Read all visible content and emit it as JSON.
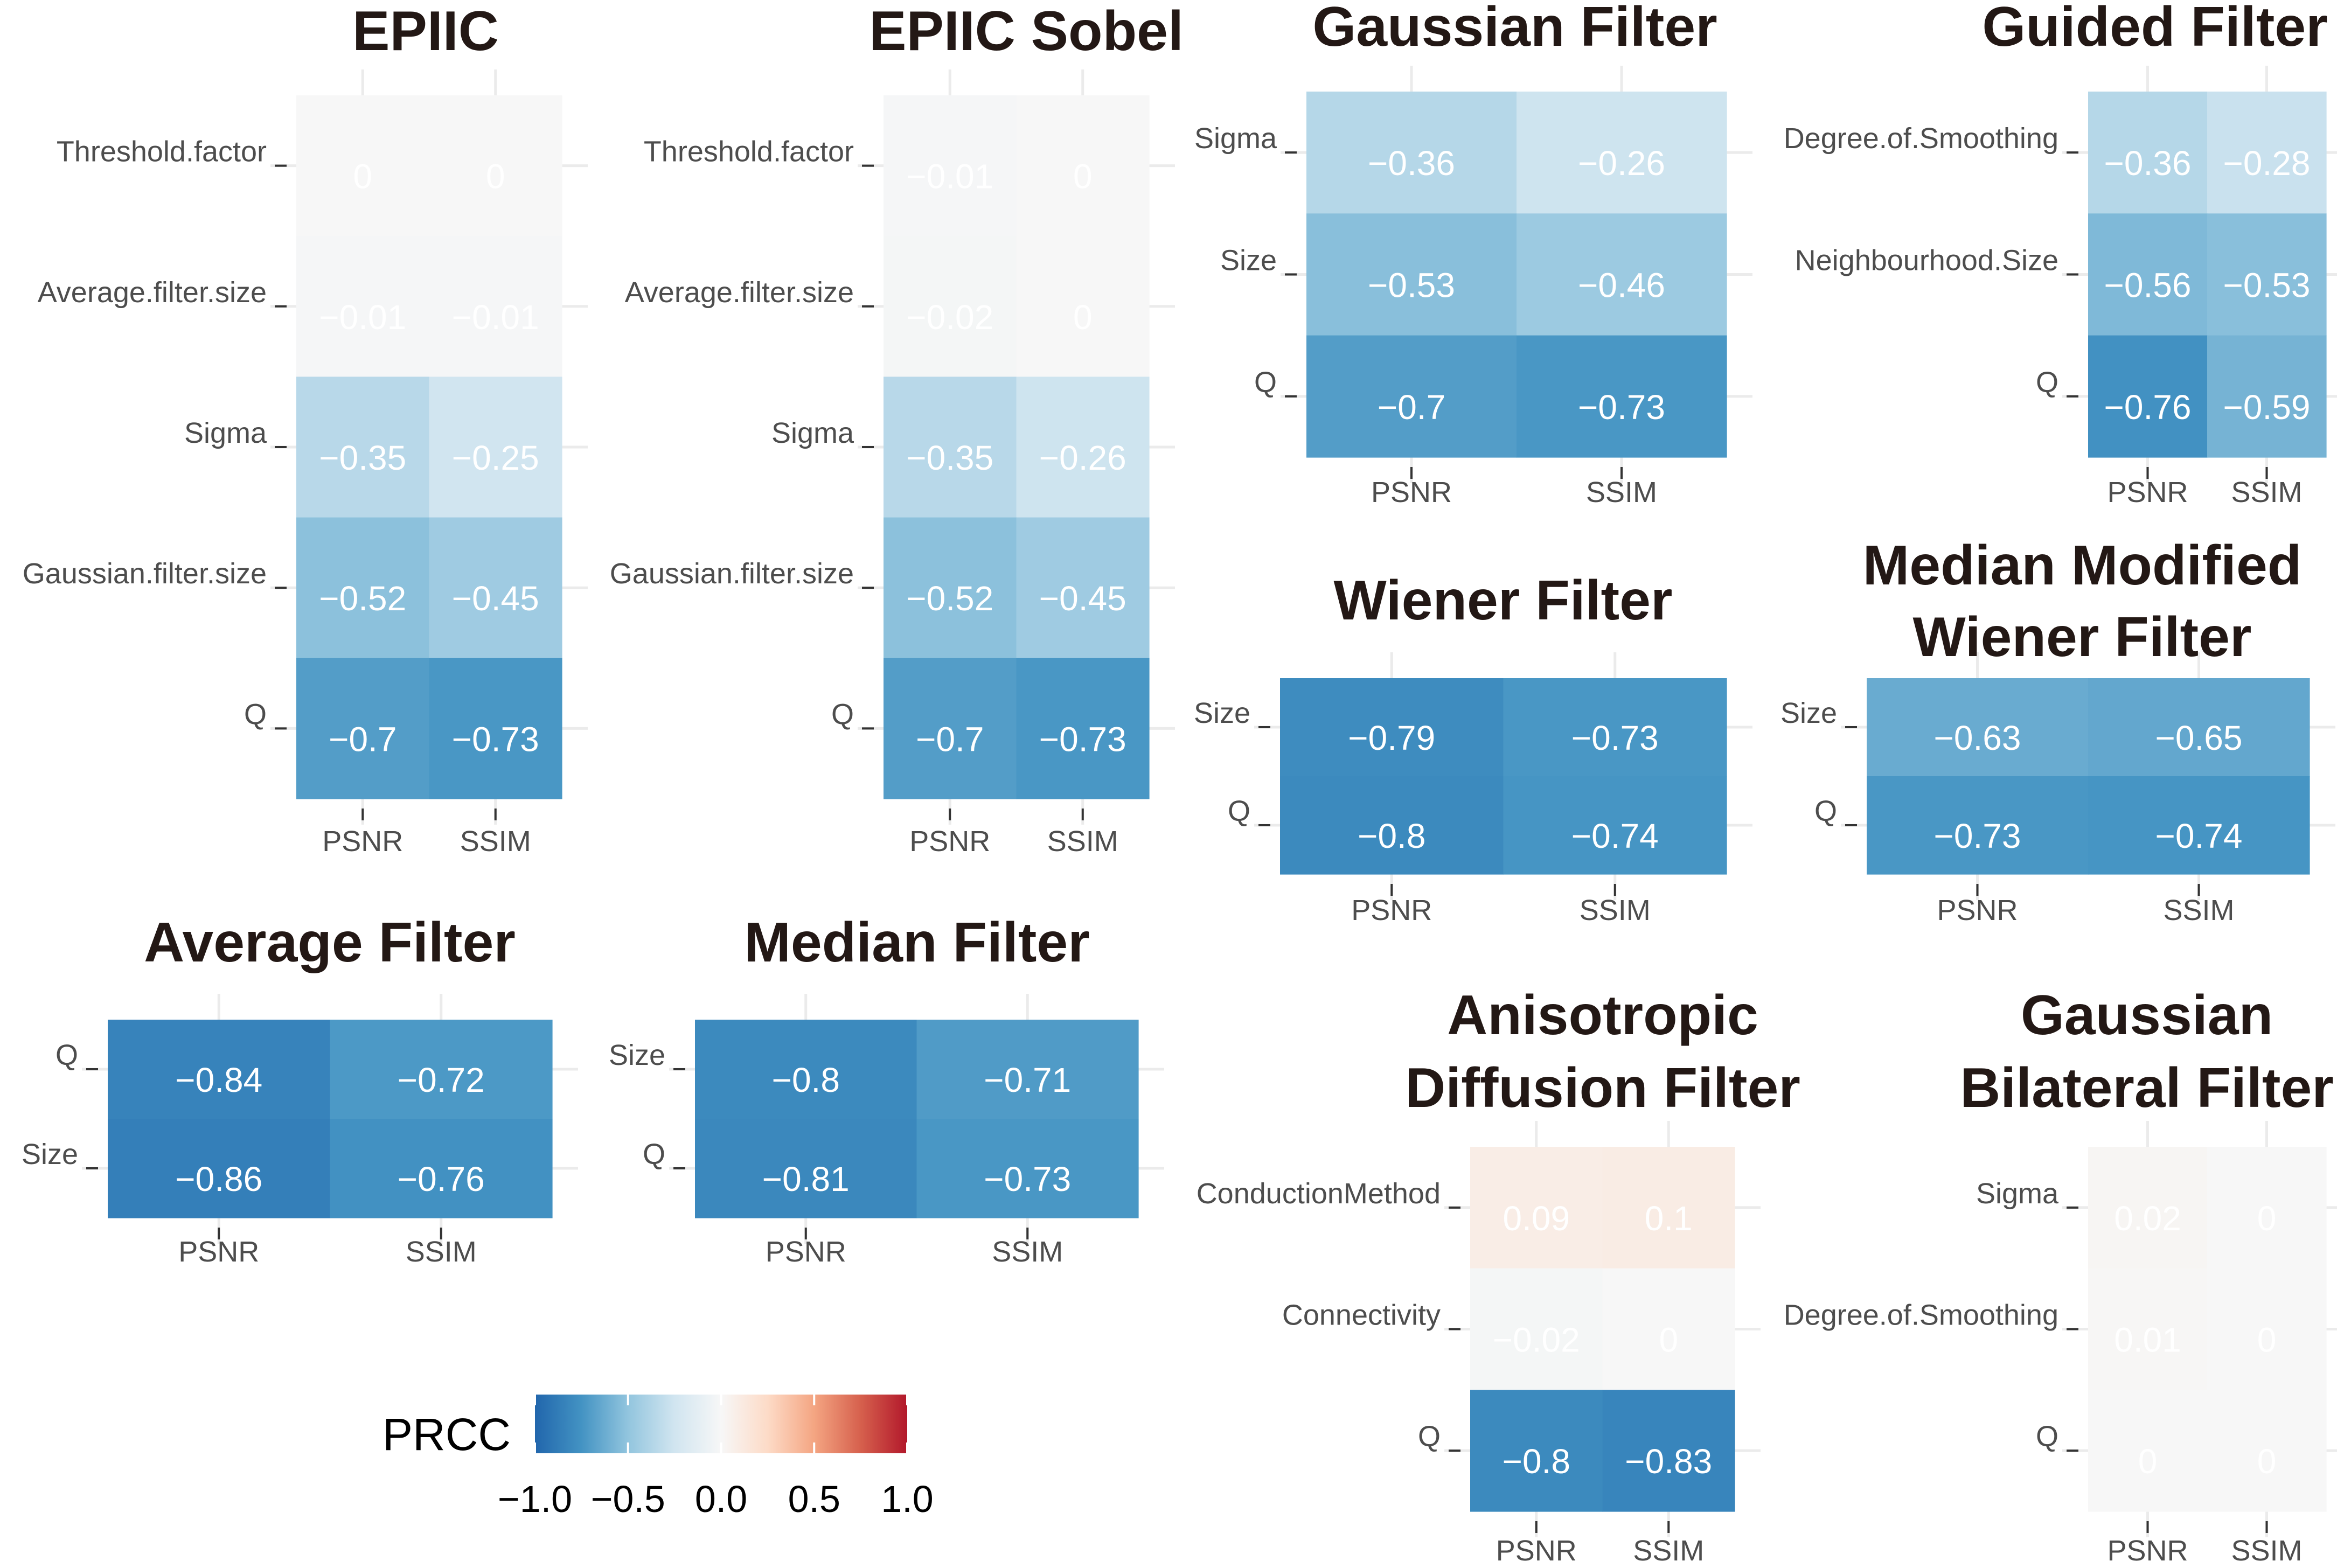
{
  "chart_data": [
    {
      "type": "heatmap",
      "title": "EPIIC",
      "rows": [
        "Threshold.factor",
        "Average.filter.size",
        "Sigma",
        "Gaussian.filter.size",
        "Q"
      ],
      "columns": [
        "PSNR",
        "SSIM"
      ],
      "values": [
        [
          0,
          0
        ],
        [
          -0.01,
          -0.01
        ],
        [
          -0.35,
          -0.25
        ],
        [
          -0.52,
          -0.45
        ],
        [
          -0.7,
          -0.73
        ]
      ],
      "labels": [
        [
          "0",
          "0"
        ],
        [
          "−0.01",
          "−0.01"
        ],
        [
          "−0.35",
          "−0.25"
        ],
        [
          "−0.52",
          "−0.45"
        ],
        [
          "−0.7",
          "−0.73"
        ]
      ]
    },
    {
      "type": "heatmap",
      "title": "EPIIC Sobel",
      "rows": [
        "Threshold.factor",
        "Average.filter.size",
        "Sigma",
        "Gaussian.filter.size",
        "Q"
      ],
      "columns": [
        "PSNR",
        "SSIM"
      ],
      "values": [
        [
          -0.01,
          0
        ],
        [
          -0.02,
          0
        ],
        [
          -0.35,
          -0.26
        ],
        [
          -0.52,
          -0.45
        ],
        [
          -0.7,
          -0.73
        ]
      ],
      "labels": [
        [
          "−0.01",
          "0"
        ],
        [
          "−0.02",
          "0"
        ],
        [
          "−0.35",
          "−0.26"
        ],
        [
          "−0.52",
          "−0.45"
        ],
        [
          "−0.7",
          "−0.73"
        ]
      ]
    },
    {
      "type": "heatmap",
      "title": "Gaussian Filter",
      "rows": [
        "Sigma",
        "Size",
        "Q"
      ],
      "columns": [
        "PSNR",
        "SSIM"
      ],
      "values": [
        [
          -0.36,
          -0.26
        ],
        [
          -0.53,
          -0.46
        ],
        [
          -0.7,
          -0.73
        ]
      ],
      "labels": [
        [
          "−0.36",
          "−0.26"
        ],
        [
          "−0.53",
          "−0.46"
        ],
        [
          "−0.7",
          "−0.73"
        ]
      ]
    },
    {
      "type": "heatmap",
      "title": "Guided Filter",
      "rows": [
        "Degree.of.Smoothing",
        "Neighbourhood.Size",
        "Q"
      ],
      "columns": [
        "PSNR",
        "SSIM"
      ],
      "values": [
        [
          -0.36,
          -0.28
        ],
        [
          -0.56,
          -0.53
        ],
        [
          -0.76,
          -0.59
        ]
      ],
      "labels": [
        [
          "−0.36",
          "−0.28"
        ],
        [
          "−0.56",
          "−0.53"
        ],
        [
          "−0.76",
          "−0.59"
        ]
      ]
    },
    {
      "type": "heatmap",
      "title": "Wiener Filter",
      "rows": [
        "Size",
        "Q"
      ],
      "columns": [
        "PSNR",
        "SSIM"
      ],
      "values": [
        [
          -0.79,
          -0.73
        ],
        [
          -0.8,
          -0.74
        ]
      ],
      "labels": [
        [
          "−0.79",
          "−0.73"
        ],
        [
          "−0.8",
          "−0.74"
        ]
      ]
    },
    {
      "type": "heatmap",
      "title": [
        "Median Modified",
        "Wiener Filter"
      ],
      "rows": [
        "Size",
        "Q"
      ],
      "columns": [
        "PSNR",
        "SSIM"
      ],
      "values": [
        [
          -0.63,
          -0.65
        ],
        [
          -0.73,
          -0.74
        ]
      ],
      "labels": [
        [
          "−0.63",
          "−0.65"
        ],
        [
          "−0.73",
          "−0.74"
        ]
      ]
    },
    {
      "type": "heatmap",
      "title": "Average Filter",
      "rows": [
        "Q",
        "Size"
      ],
      "columns": [
        "PSNR",
        "SSIM"
      ],
      "values": [
        [
          -0.84,
          -0.72
        ],
        [
          -0.86,
          -0.76
        ]
      ],
      "labels": [
        [
          "−0.84",
          "−0.72"
        ],
        [
          "−0.86",
          "−0.76"
        ]
      ]
    },
    {
      "type": "heatmap",
      "title": "Median Filter",
      "rows": [
        "Size",
        "Q"
      ],
      "columns": [
        "PSNR",
        "SSIM"
      ],
      "values": [
        [
          -0.8,
          -0.71
        ],
        [
          -0.81,
          -0.73
        ]
      ],
      "labels": [
        [
          "−0.8",
          "−0.71"
        ],
        [
          "−0.81",
          "−0.73"
        ]
      ]
    },
    {
      "type": "heatmap",
      "title": [
        "Anisotropic",
        "Diffusion Filter"
      ],
      "rows": [
        "ConductionMethod",
        "Connectivity",
        "Q"
      ],
      "columns": [
        "PSNR",
        "SSIM"
      ],
      "values": [
        [
          0.09,
          0.1
        ],
        [
          -0.02,
          0
        ],
        [
          -0.8,
          -0.83
        ]
      ],
      "labels": [
        [
          "0.09",
          "0.1"
        ],
        [
          "−0.02",
          "0"
        ],
        [
          "−0.8",
          "−0.83"
        ]
      ]
    },
    {
      "type": "heatmap",
      "title": [
        "Gaussian",
        "Bilateral Filter"
      ],
      "rows": [
        "Sigma",
        "Degree.of.Smoothing",
        "Q"
      ],
      "columns": [
        "PSNR",
        "SSIM"
      ],
      "values": [
        [
          0.02,
          0
        ],
        [
          0.01,
          0
        ],
        [
          0,
          0
        ]
      ],
      "labels": [
        [
          "0.02",
          "0"
        ],
        [
          "0.01",
          "0"
        ],
        [
          "0",
          "0"
        ]
      ]
    }
  ],
  "legend": {
    "title": "PRCC",
    "ticks": [
      "−1.0",
      "−0.5",
      "0.0",
      "0.5",
      "1.0"
    ],
    "range": [
      -1,
      1
    ],
    "palette": [
      "#2166ac",
      "#4393c3",
      "#92c5de",
      "#d1e5f0",
      "#f7f7f7",
      "#fddbc7",
      "#f4a582",
      "#d6604d",
      "#b2182b"
    ]
  },
  "colors": {
    "title": "#231815",
    "axis_text": "#4d4d4d",
    "grid": "#ebebeb",
    "cell_text": "#ffffff"
  }
}
